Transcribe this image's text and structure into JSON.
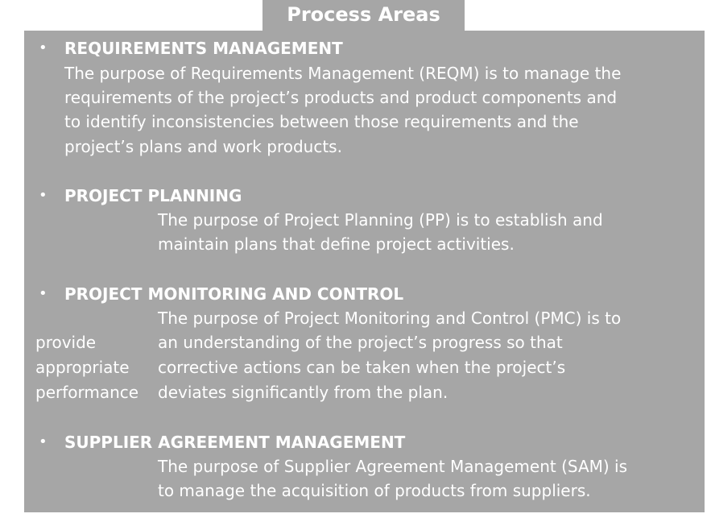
{
  "title": "Process Areas",
  "areas": [
    {
      "bullet": "•",
      "heading": "REQUIREMENTS MANAGEMENT",
      "lines": [
        "The purpose of Requirements Management (REQM) is to manage the",
        "requirements of the project’s products and product components and",
        "to identify inconsistencies between those requirements and the",
        "project’s plans and work products."
      ]
    },
    {
      "bullet": "•",
      "heading": "PROJECT PLANNING",
      "lines": [
        "The purpose of Project Planning (PP) is to establish and",
        "maintain plans that define project activities."
      ]
    },
    {
      "bullet": "•",
      "heading": "PROJECT MONITORING AND CONTROL",
      "lines": [
        "The purpose of Project Monitoring and Control (PMC) is to",
        "an understanding of the project’s progress so that",
        "corrective actions can be taken when the project’s",
        "deviates significantly from the plan."
      ],
      "side_words": [
        "provide",
        "appropriate",
        "performance"
      ]
    },
    {
      "bullet": "•",
      "heading": "SUPPLIER AGREEMENT MANAGEMENT",
      "lines": [
        "The purpose of Supplier Agreement Management (SAM) is",
        "to manage the acquisition of products from suppliers."
      ]
    }
  ]
}
